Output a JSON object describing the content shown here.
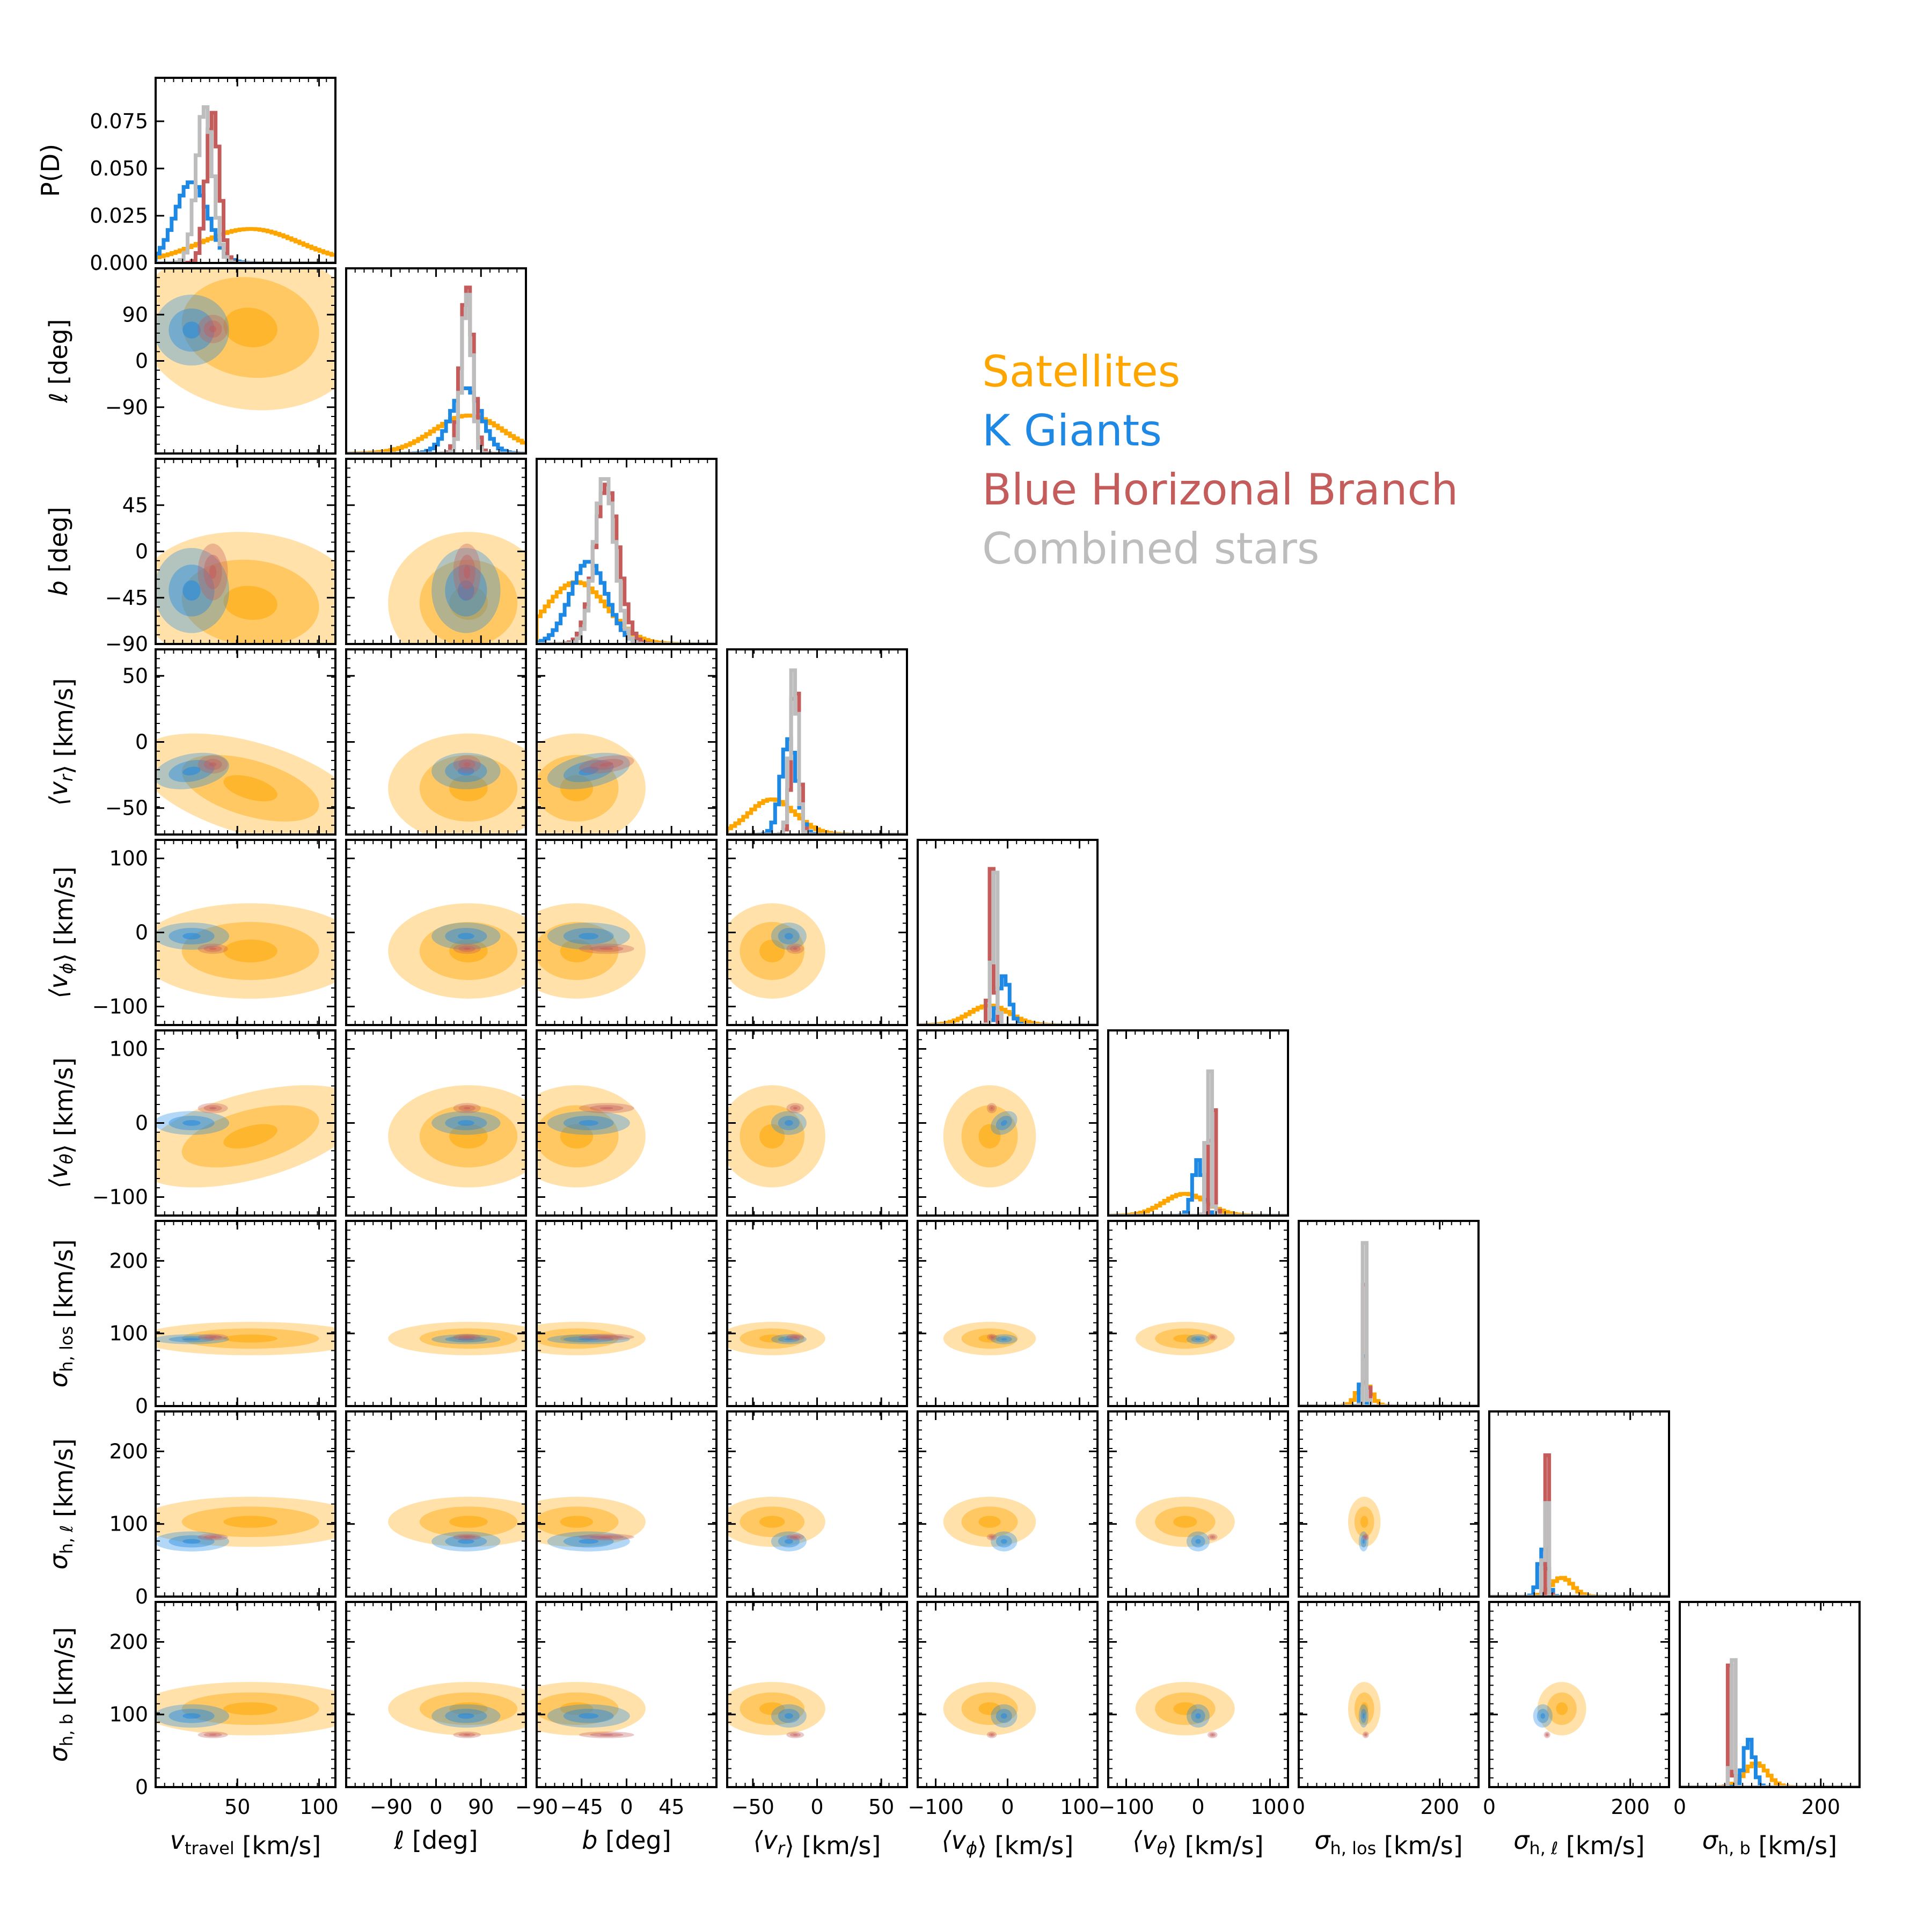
{
  "chart_data": {
    "type": "corner",
    "params": [
      {
        "key": "vtravel",
        "label_main": "v",
        "label_sub": "travel",
        "unit": "[km/s]",
        "range": [
          0,
          110
        ],
        "ticks": [
          50,
          100
        ]
      },
      {
        "key": "l",
        "label_main": "ℓ",
        "unit": "[deg]",
        "range": [
          -180,
          180
        ],
        "ticks": [
          -90,
          0,
          90
        ]
      },
      {
        "key": "b",
        "label_main": "b",
        "unit": "[deg]",
        "range": [
          -90,
          90
        ],
        "ticks": [
          -90,
          -45,
          0,
          45
        ]
      },
      {
        "key": "vr",
        "label_main": "⟨v",
        "label_sub": "r",
        "label_end": "⟩",
        "unit": "[km/s]",
        "range": [
          -70,
          70
        ],
        "ticks": [
          -50,
          0,
          50
        ]
      },
      {
        "key": "vphi",
        "label_main": "⟨v",
        "label_sub": "ϕ",
        "label_end": "⟩",
        "unit": "[km/s]",
        "range": [
          -125,
          125
        ],
        "ticks": [
          -100,
          0,
          100
        ]
      },
      {
        "key": "vtheta",
        "label_main": "⟨v",
        "label_sub": "θ",
        "label_end": "⟩",
        "unit": "[km/s]",
        "range": [
          -125,
          125
        ],
        "ticks": [
          -100,
          0,
          100
        ]
      },
      {
        "key": "sig_los",
        "label_main": "σ",
        "label_sub": "h, los",
        "unit": "[km/s]",
        "range": [
          0,
          255
        ],
        "ticks": [
          0,
          100,
          200
        ],
        "xticks": [
          0,
          200
        ]
      },
      {
        "key": "sig_l",
        "label_main": "σ",
        "label_sub": "h, ℓ",
        "unit": "[km/s]",
        "range": [
          0,
          255
        ],
        "ticks": [
          0,
          100,
          200
        ],
        "xticks": [
          0,
          200
        ]
      },
      {
        "key": "sig_b",
        "label_main": "σ",
        "label_sub": "h, b",
        "unit": "[km/s]",
        "range": [
          0,
          255
        ],
        "ticks": [
          0,
          100,
          200
        ],
        "xticks": [
          0,
          200
        ]
      }
    ],
    "diag_top_ylabel": "P(D)",
    "diag_top_yticks": [
      "0.000",
      "0.025",
      "0.050",
      "0.075"
    ],
    "diag_top_ylim": [
      0,
      0.098
    ],
    "series": [
      {
        "name": "Satellites",
        "color": "#FFA500",
        "mean": [
          58,
          65,
          -50,
          -35,
          -25,
          -18,
          93,
          103,
          108
        ],
        "sd": [
          30,
          70,
          30,
          18,
          28,
          30,
          10,
          15,
          16
        ],
        "corr": {
          "0-1": -0.1,
          "0-2": -0.1,
          "0-3": -0.5,
          "0-5": 0.5
        },
        "peak": [
          0.018,
          0.03,
          0.021,
          0.014,
          0.01,
          0.011,
          0.025,
          0.02,
          0.02
        ]
      },
      {
        "name": "K Giants",
        "color": "#1E88E5",
        "mean": [
          22,
          60,
          -38,
          -22,
          -5,
          0,
          92,
          76,
          98
        ],
        "sd": [
          10,
          30,
          18,
          6,
          8,
          7,
          3,
          6,
          7
        ],
        "corr": {
          "0-3": 0.3,
          "2-3": 0.4,
          "4-5": 0.3
        },
        "peak": [
          0.043,
          0.052,
          0.028,
          0.038,
          0.025,
          0.028,
          0.06,
          0.05,
          0.04
        ]
      },
      {
        "name": "Blue Horizonal Branch",
        "color": "#C45C5C",
        "mean": [
          35,
          62,
          -20,
          -17,
          -22,
          20,
          95,
          82,
          72
        ],
        "sd": [
          4,
          12,
          12,
          3,
          3,
          3,
          2,
          2,
          2
        ],
        "corr": {
          "2-3": 0.4
        },
        "peak": [
          0.08,
          0.133,
          0.054,
          0.063,
          0.08,
          0.07,
          0.17,
          0.15,
          0.12
        ]
      },
      {
        "name": "Combined stars",
        "color": "#BDBDBD",
        "mean": [
          30,
          62,
          -22,
          -18,
          -18,
          15,
          94,
          80,
          75
        ],
        "sd": [
          5,
          10,
          10,
          3,
          3,
          3,
          2,
          2,
          2
        ],
        "corr": {
          "2-3": 0.4
        },
        "peak": [
          0.083,
          0.128,
          0.057,
          0.067,
          0.086,
          0.085,
          0.178,
          0.178,
          0.14
        ]
      }
    ]
  }
}
